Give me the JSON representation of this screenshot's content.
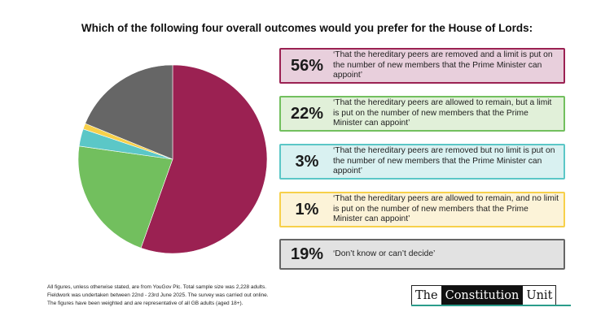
{
  "title": "Which of the following four overall outcomes would you prefer for the House of Lords:",
  "chart_data": {
    "type": "pie",
    "title": "Which of the following four overall outcomes would you prefer for the House of Lords:",
    "slices": [
      {
        "label": "56%",
        "value": 56,
        "color": "#9b2152",
        "fill": "#e8cfdc",
        "text": "‘That the hereditary peers are removed and a limit is put on the number of new members that the Prime Minister can appoint’"
      },
      {
        "label": "22%",
        "value": 22,
        "color": "#72bf5e",
        "fill": "#e1f0d9",
        "text": "‘That the hereditary peers are allowed to remain, but a limit is put on the number of new members that the Prime Minister can appoint’"
      },
      {
        "label": "3%",
        "value": 3,
        "color": "#5bc7c7",
        "fill": "#d9f1f1",
        "text": "‘That the hereditary peers are removed but no limit is put on the number of new members that the Prime Minister can appoint’"
      },
      {
        "label": "1%",
        "value": 1,
        "color": "#f7d04a",
        "fill": "#fcf3d8",
        "text": "‘That the hereditary peers are allowed to remain, and no limit is put on the number of new members that the Prime Minister can appoint’"
      },
      {
        "label": "19%",
        "value": 19,
        "color": "#666666",
        "fill": "#e2e2e2",
        "text": "‘Don’t know or can’t decide’"
      }
    ]
  },
  "footnote": [
    "All figures, unless otherwise stated, are from YouGov Plc. Total sample size was 2,228 adults.",
    "Fieldwork was undertaken between 22nd - 23rd June 2025. The survey was carried out online.",
    "The figures have been weighted and are representative of all GB adults (aged 18+)."
  ],
  "logo": {
    "word1": "The",
    "word2": "Constitution",
    "word3": "Unit"
  }
}
